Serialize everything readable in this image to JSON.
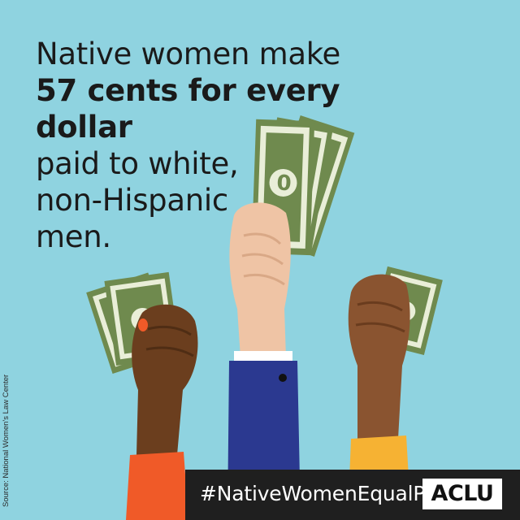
{
  "headline": {
    "line1": "Native women make",
    "line2_bold": "57 cents for every dollar",
    "line3": "paid to white,",
    "line4": "non-Hispanic",
    "line5": "men."
  },
  "source": "Source: National Women's Law Center",
  "footer": {
    "hashtag": "#NativeWomenEqualPay",
    "logo": "ACLU"
  },
  "colors": {
    "background": "#8fd3e0",
    "money_green": "#6f8a4e",
    "bill_paper": "#e9eed8",
    "skin_dark": "#6b3e1e",
    "skin_light": "#efc4a5",
    "skin_brown": "#8a5430",
    "sleeve_orange": "#f05a28",
    "sleeve_blue": "#2b3990",
    "sleeve_yellow": "#f6b233",
    "footer_bg": "#1f1f1f"
  }
}
